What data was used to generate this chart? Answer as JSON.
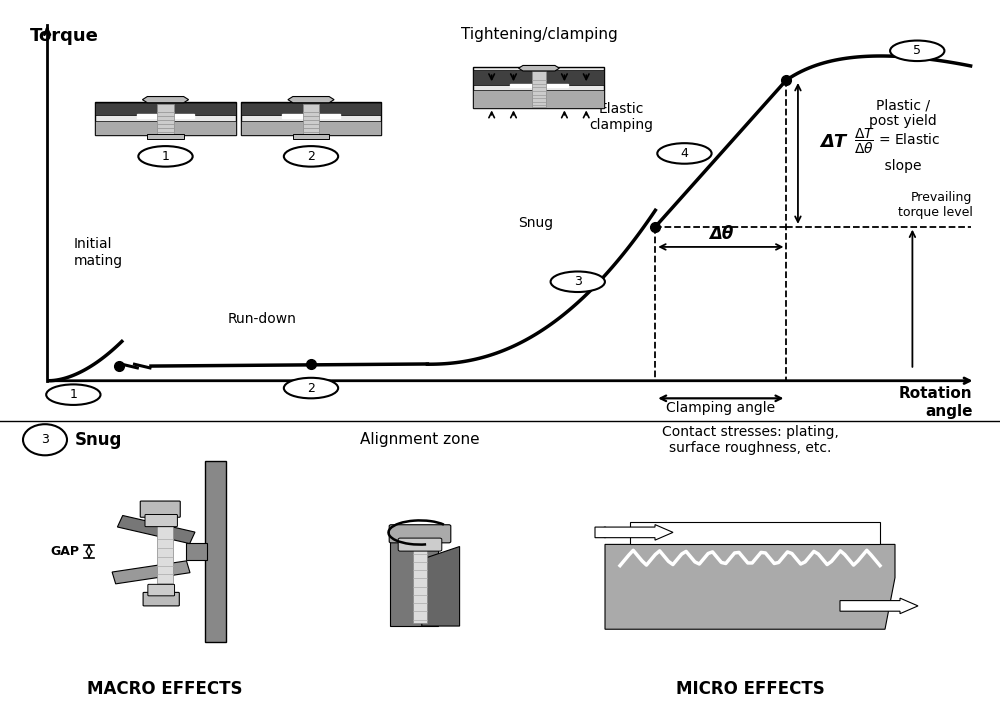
{
  "bg_color": "#ffffff",
  "text_color": "#000000",
  "phase_labels": {
    "initial_mating": "Initial\nmating",
    "run_down": "Run-down",
    "snug": "Snug",
    "elastic_clamping": "Elastic\nclamping",
    "plastic": "Plastic /\npost yield",
    "torque_label": "Torque",
    "angle_label": "Rotation\nangle",
    "delta_T": "ΔT",
    "delta_theta": "Δθ",
    "clamping_angle": "Clamping angle",
    "prevailing_torque": "Prevailing\ntorque level",
    "tightening": "Tightening/clamping"
  },
  "bottom_labels": {
    "snug_label": "Snug",
    "macro_label": "MACRO EFFECTS",
    "micro_label": "MICRO EFFECTS",
    "alignment_label": "Alignment zone",
    "contact_label": "Contact stresses: plating,\nsurface roughness, etc.",
    "gap_label": "GAP"
  }
}
